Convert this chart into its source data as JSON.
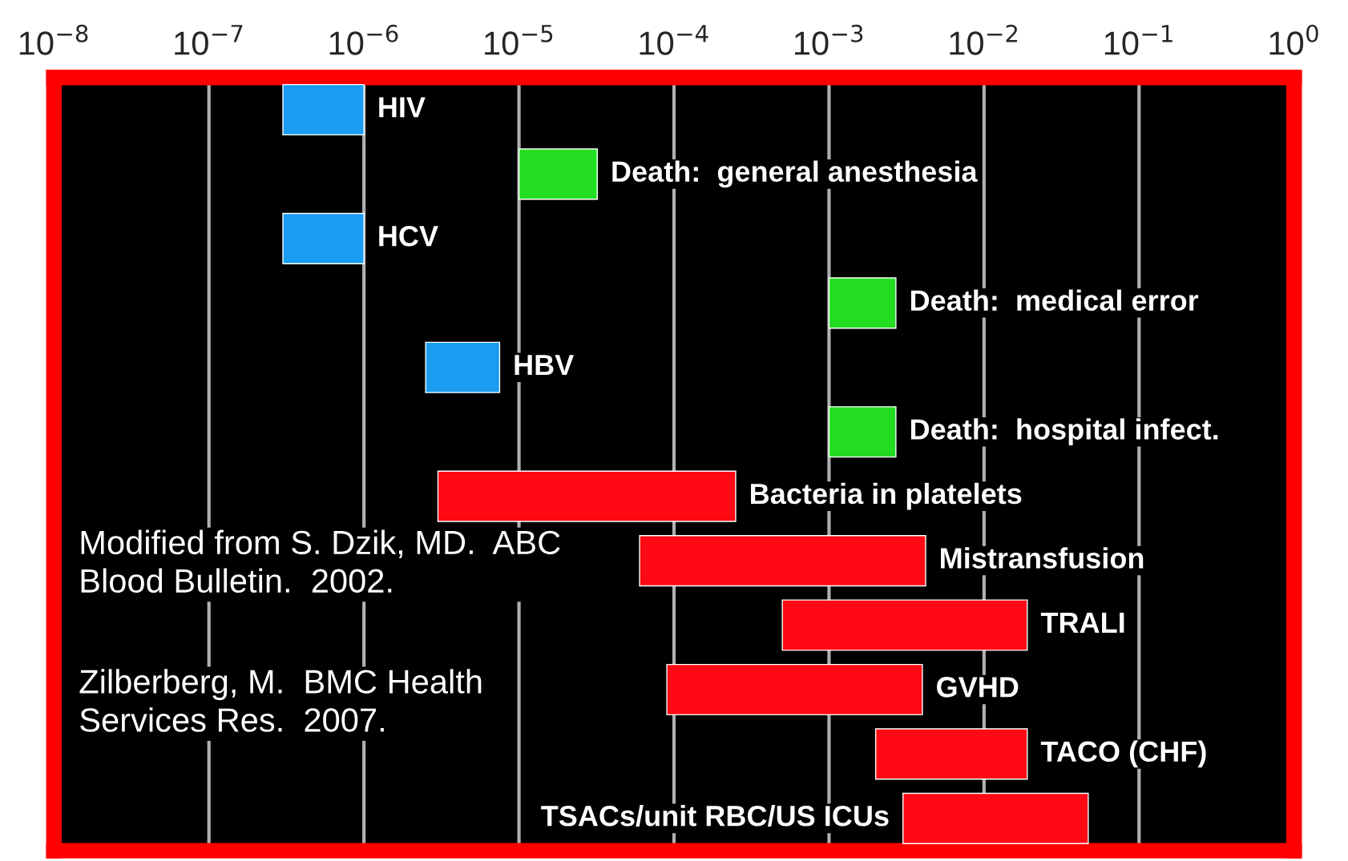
{
  "chart_data": {
    "type": "bar",
    "orientation": "horizontal",
    "log": "x",
    "legend": false,
    "grid": "x",
    "categories": [
      "HIV",
      "Death:  general anesthesia",
      "HCV",
      "Death:  medical error",
      "HBV",
      "Death:  hospital infect.",
      "Bacteria in platelets",
      "Mistransfusion",
      "TRALI",
      "GVHD",
      "TACO (CHF)",
      "TSACs/unit RBC/US ICUs"
    ],
    "base": [
      3e-07,
      1e-05,
      3e-07,
      0.001,
      2.5e-06,
      0.001,
      3e-06,
      6e-05,
      0.0005,
      9e-05,
      0.002,
      0.003
    ],
    "values": [
      7e-07,
      2.2e-05,
      7e-07,
      0.0017,
      5e-06,
      0.0017,
      0.000247,
      0.00414,
      0.0185,
      0.00391,
      0.017,
      0.044
    ],
    "colors": [
      "#1a9cf0",
      "#22dd22",
      "#1a9cf0",
      "#22dd22",
      "#1a9cf0",
      "#22dd22",
      "#ff0a14",
      "#ff0a14",
      "#ff0a14",
      "#ff0a14",
      "#ff0a14",
      "#ff0a14"
    ],
    "xlim": [
      1e-08,
      1
    ],
    "xticks": [
      {
        "value": 1e-08,
        "label": "10$^{−8}$"
      },
      {
        "value": 1e-07,
        "label": "10$^{−7}$"
      },
      {
        "value": 1e-06,
        "label": "10$^{−6}$"
      },
      {
        "value": 1e-05,
        "label": "10$^{−5}$"
      },
      {
        "value": 0.0001,
        "label": "10$^{−4}$"
      },
      {
        "value": 0.001,
        "label": "10$^{−3}$"
      },
      {
        "value": 0.01,
        "label": "10$^{−2}$"
      },
      {
        "value": 0.1,
        "label": "10$^{−1}$"
      },
      {
        "value": 1,
        "label": "10$^{0}$"
      }
    ],
    "tick_labels": "x",
    "annotations": [
      "Modified from S. Dzik, MD.  ABC\nBlood Bulletin.  2002.",
      "Zilberberg, M.  BMC Health\nServices Res.  2007."
    ]
  }
}
